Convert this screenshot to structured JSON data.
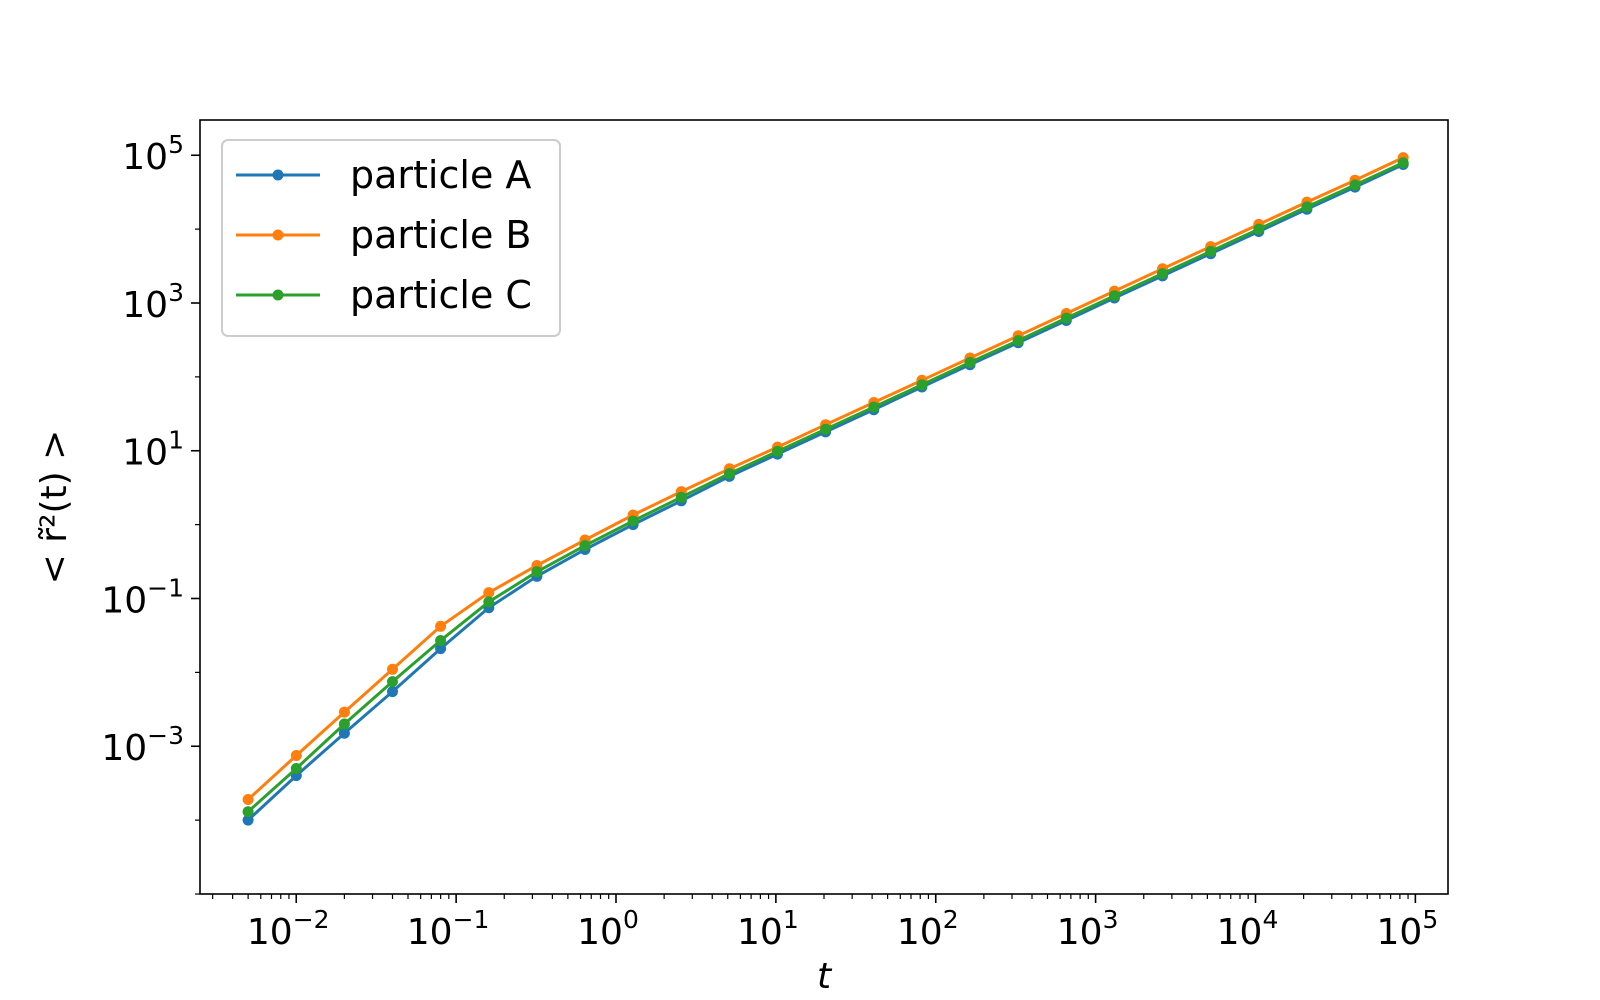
{
  "chart_data": {
    "type": "line",
    "xscale": "log",
    "yscale": "log",
    "xlabel": "t",
    "ylabel": "< r̃²(t) >",
    "xlim": [
      0.0025,
      160000
    ],
    "ylim": [
      1e-05,
      300000
    ],
    "xticks": [
      {
        "mant": "10",
        "exp": "−2",
        "value": 0.01
      },
      {
        "mant": "10",
        "exp": "−1",
        "value": 0.1
      },
      {
        "mant": "10",
        "exp": "0",
        "value": 1
      },
      {
        "mant": "10",
        "exp": "1",
        "value": 10
      },
      {
        "mant": "10",
        "exp": "2",
        "value": 100
      },
      {
        "mant": "10",
        "exp": "3",
        "value": 1000
      },
      {
        "mant": "10",
        "exp": "4",
        "value": 10000
      },
      {
        "mant": "10",
        "exp": "5",
        "value": 100000
      }
    ],
    "yticks": [
      {
        "mant": "10",
        "exp": "−3",
        "value": 0.001
      },
      {
        "mant": "10",
        "exp": "−1",
        "value": 0.1
      },
      {
        "mant": "10",
        "exp": "1",
        "value": 10
      },
      {
        "mant": "10",
        "exp": "3",
        "value": 1000
      },
      {
        "mant": "10",
        "exp": "5",
        "value": 100000
      }
    ],
    "legend": "top-left",
    "grid": false,
    "x": [
      0.005,
      0.01,
      0.02,
      0.04,
      0.08,
      0.16,
      0.32,
      0.64,
      1.28,
      2.56,
      5.12,
      10.24,
      20.48,
      40.96,
      81.92,
      163.84,
      327.68,
      655.36,
      1310.72,
      2621.44,
      5242.88,
      10485.76,
      20971.52,
      41943.04,
      83886.08
    ],
    "series": [
      {
        "name": "particle A",
        "color": "#1f77b4",
        "values": [
          0.0001,
          0.0004,
          0.0015,
          0.0055,
          0.021,
          0.075,
          0.2,
          0.46,
          1.0,
          2.1,
          4.5,
          9.0,
          18,
          36,
          73,
          146,
          290,
          580,
          1170,
          2330,
          4650,
          9300,
          18600,
          37000,
          75000
        ]
      },
      {
        "name": "particle B",
        "color": "#ff7f0e",
        "values": [
          0.00019,
          0.00075,
          0.0029,
          0.011,
          0.042,
          0.12,
          0.28,
          0.62,
          1.35,
          2.8,
          5.7,
          11.2,
          22.5,
          45,
          90,
          180,
          360,
          720,
          1450,
          2900,
          5800,
          11600,
          23200,
          46000,
          93000
        ]
      },
      {
        "name": "particle C",
        "color": "#2ca02c",
        "values": [
          0.00013,
          0.0005,
          0.002,
          0.0075,
          0.027,
          0.09,
          0.23,
          0.52,
          1.12,
          2.35,
          4.9,
          9.8,
          19.6,
          39,
          78,
          157,
          310,
          625,
          1250,
          2500,
          5000,
          10000,
          20000,
          39500,
          79000
        ]
      }
    ]
  }
}
